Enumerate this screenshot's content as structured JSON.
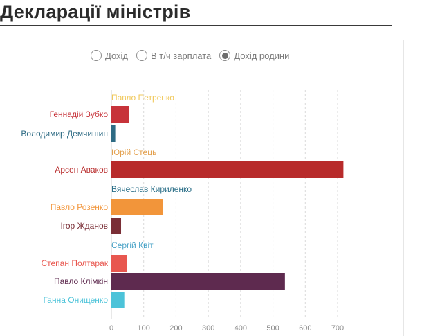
{
  "page": {
    "title": "Декларації міністрів"
  },
  "filters": {
    "options": [
      {
        "label": "Дохід",
        "selected": false
      },
      {
        "label": "В т/ч зарплата",
        "selected": false
      },
      {
        "label": "Дохід родини",
        "selected": true
      }
    ]
  },
  "chart_data": {
    "type": "bar",
    "orientation": "horizontal",
    "xlim": [
      0,
      700
    ],
    "x_ticks": [
      "0",
      "100",
      "200",
      "300",
      "400",
      "500",
      "600",
      "700"
    ],
    "grid": true,
    "categories": [
      {
        "name": "Павло Петренко",
        "value": null,
        "color": "#f0c85a"
      },
      {
        "name": "Геннадій Зубко",
        "value": 55,
        "color": "#c7333a"
      },
      {
        "name": "Володимир Демчишин",
        "value": 12,
        "color": "#2e6b84"
      },
      {
        "name": "Юрій Стець",
        "value": null,
        "color": "#e3a04e"
      },
      {
        "name": "Арсен Аваков",
        "value": 718,
        "color": "#b82b2b"
      },
      {
        "name": "Вячеслав Кириленко",
        "value": null,
        "color": "#2b6f88"
      },
      {
        "name": "Павло Розенко",
        "value": 160,
        "color": "#f2953a"
      },
      {
        "name": "Ігор Жданов",
        "value": 30,
        "color": "#7a2e36"
      },
      {
        "name": "Сергій Квіт",
        "value": null,
        "color": "#4aa3c7"
      },
      {
        "name": "Степан Полтарак",
        "value": 48,
        "color": "#e8574f"
      },
      {
        "name": "Павло Клімкін",
        "value": 537,
        "color": "#5e2a4f"
      },
      {
        "name": "Ганна Онищенко",
        "value": 40,
        "color": "#4cc3d9"
      }
    ]
  }
}
